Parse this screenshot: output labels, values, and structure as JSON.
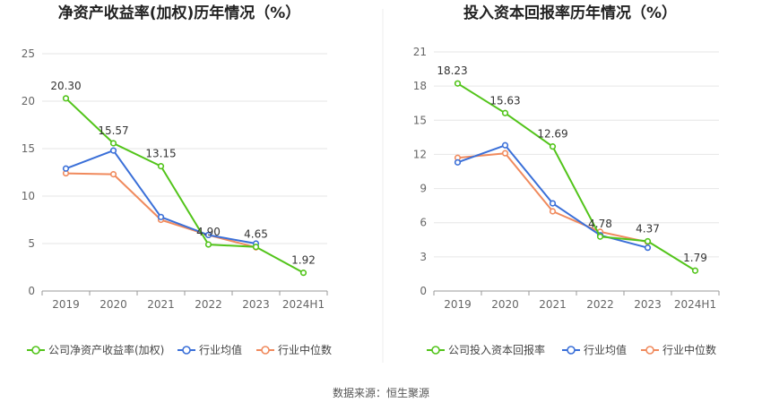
{
  "source_label": "数据来源：恒生聚源",
  "colors": {
    "company": "#52c41a",
    "avg": "#3a6fd8",
    "median": "#f08a5d",
    "grid": "#e6e6e6",
    "axis": "#999999"
  },
  "chart_data": [
    {
      "type": "line",
      "title": "净资产收益率(加权)历年情况（%）",
      "categories": [
        "2019",
        "2020",
        "2021",
        "2022",
        "2023",
        "2024H1"
      ],
      "ylim": [
        0,
        25
      ],
      "yticks": [
        0,
        5,
        10,
        15,
        20,
        25
      ],
      "series": [
        {
          "key": "company",
          "name": "公司净资产收益率(加权)",
          "values": [
            20.3,
            15.57,
            13.15,
            4.9,
            4.65,
            1.92
          ],
          "labels": [
            "20.30",
            "15.57",
            "13.15",
            "4.90",
            "4.65",
            "1.92"
          ]
        },
        {
          "key": "avg",
          "name": "行业均值",
          "values": [
            12.9,
            14.8,
            7.8,
            5.9,
            5.0,
            null
          ]
        },
        {
          "key": "median",
          "name": "行业中位数",
          "values": [
            12.4,
            12.3,
            7.5,
            5.9,
            4.6,
            null
          ]
        }
      ]
    },
    {
      "type": "line",
      "title": "投入资本回报率历年情况（%）",
      "categories": [
        "2019",
        "2020",
        "2021",
        "2022",
        "2023",
        "2024H1"
      ],
      "ylim": [
        0,
        21
      ],
      "yticks": [
        0,
        3,
        6,
        9,
        12,
        15,
        18,
        21
      ],
      "series": [
        {
          "key": "company",
          "name": "公司投入资本回报率",
          "values": [
            18.23,
            15.63,
            12.69,
            4.78,
            4.37,
            1.79
          ],
          "labels": [
            "18.23",
            "15.63",
            "12.69",
            "4.78",
            "4.37",
            "1.79"
          ]
        },
        {
          "key": "avg",
          "name": "行业均值",
          "values": [
            11.3,
            12.8,
            7.7,
            4.9,
            3.8,
            null
          ]
        },
        {
          "key": "median",
          "name": "行业中位数",
          "values": [
            11.7,
            12.1,
            7.0,
            5.2,
            4.3,
            null
          ]
        }
      ]
    }
  ]
}
